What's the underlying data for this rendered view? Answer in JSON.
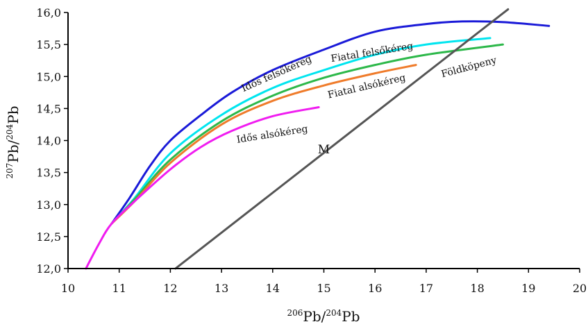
{
  "chart_data": {
    "type": "line",
    "xlabel": {
      "sup": "206",
      "base1": "Pb/",
      "sup2": "204",
      "base2": "Pb"
    },
    "ylabel": {
      "sup": "207",
      "base1": "Pb/",
      "sup2": "204",
      "base2": "Pb"
    },
    "xlim": [
      10,
      20
    ],
    "ylim": [
      12.0,
      16.0
    ],
    "x_ticks": [
      "10",
      "11",
      "12",
      "13",
      "14",
      "15",
      "16",
      "17",
      "18",
      "19",
      "20"
    ],
    "y_ticks": [
      "12,0",
      "12,5",
      "13,0",
      "13,5",
      "14,0",
      "14,5",
      "15,0",
      "15,5",
      "16,0"
    ],
    "grid": false,
    "series": [
      {
        "name": "Idős felsőkéreg",
        "color": "#1a1ad8",
        "points": [
          [
            10.85,
            12.7
          ],
          [
            11.2,
            13.1
          ],
          [
            11.6,
            13.6
          ],
          [
            12.0,
            14.0
          ],
          [
            12.6,
            14.4
          ],
          [
            13.2,
            14.75
          ],
          [
            14.0,
            15.1
          ],
          [
            15.0,
            15.42
          ],
          [
            16.0,
            15.7
          ],
          [
            17.0,
            15.82
          ],
          [
            17.7,
            15.86
          ],
          [
            18.5,
            15.85
          ],
          [
            19.4,
            15.79
          ]
        ]
      },
      {
        "name": "Fiatal felsőkéreg",
        "color": "#00e5ef",
        "points": [
          [
            10.85,
            12.7
          ],
          [
            11.3,
            13.1
          ],
          [
            12.0,
            13.8
          ],
          [
            13.0,
            14.4
          ],
          [
            14.0,
            14.82
          ],
          [
            15.0,
            15.1
          ],
          [
            16.0,
            15.34
          ],
          [
            17.0,
            15.5
          ],
          [
            18.25,
            15.6
          ]
        ]
      },
      {
        "name": "Földköpeny",
        "color": "#2db84a",
        "points": [
          [
            10.85,
            12.7
          ],
          [
            11.3,
            13.08
          ],
          [
            12.0,
            13.7
          ],
          [
            13.0,
            14.3
          ],
          [
            14.0,
            14.7
          ],
          [
            15.0,
            14.98
          ],
          [
            16.0,
            15.18
          ],
          [
            17.0,
            15.34
          ],
          [
            18.5,
            15.5
          ]
        ]
      },
      {
        "name": "Fiatal alsókéreg",
        "color": "#ef7b2a",
        "points": [
          [
            10.85,
            12.7
          ],
          [
            11.3,
            13.05
          ],
          [
            12.0,
            13.65
          ],
          [
            13.0,
            14.25
          ],
          [
            14.0,
            14.62
          ],
          [
            15.0,
            14.86
          ],
          [
            16.0,
            15.05
          ],
          [
            16.8,
            15.18
          ]
        ]
      },
      {
        "name": "Idős alsókéreg",
        "color": "#f01cf0",
        "points": [
          [
            10.35,
            12.0
          ],
          [
            10.6,
            12.38
          ],
          [
            10.85,
            12.7
          ],
          [
            11.3,
            13.05
          ],
          [
            12.0,
            13.55
          ],
          [
            12.6,
            13.9
          ],
          [
            13.2,
            14.15
          ],
          [
            14.0,
            14.38
          ],
          [
            14.9,
            14.52
          ]
        ]
      },
      {
        "name": "M",
        "color": "#555555",
        "points": [
          [
            12.1,
            12.0
          ],
          [
            18.6,
            16.05
          ]
        ]
      }
    ],
    "labels": [
      {
        "text": "Idős felsőkéreg",
        "series": "Idős felsőkéreg",
        "x": 14.1,
        "y": 15.0,
        "rotate": -24
      },
      {
        "text": "Fiatal felsőkéreg",
        "series": "Fiatal felsőkéreg",
        "x": 15.95,
        "y": 15.33,
        "rotate": -9
      },
      {
        "text": "Földköpeny",
        "series": "Földköpeny",
        "x": 17.85,
        "y": 15.1,
        "rotate": -15
      },
      {
        "text": "Fiatal alsókéreg",
        "series": "Fiatal alsókéreg",
        "x": 15.85,
        "y": 14.8,
        "rotate": -13
      },
      {
        "text": "Idős alsókéreg",
        "series": "Idős alsókéreg",
        "x": 14.0,
        "y": 14.05,
        "rotate": -9
      },
      {
        "text": "M",
        "series": "M",
        "x": 15.0,
        "y": 13.8,
        "rotate": 0
      }
    ]
  }
}
